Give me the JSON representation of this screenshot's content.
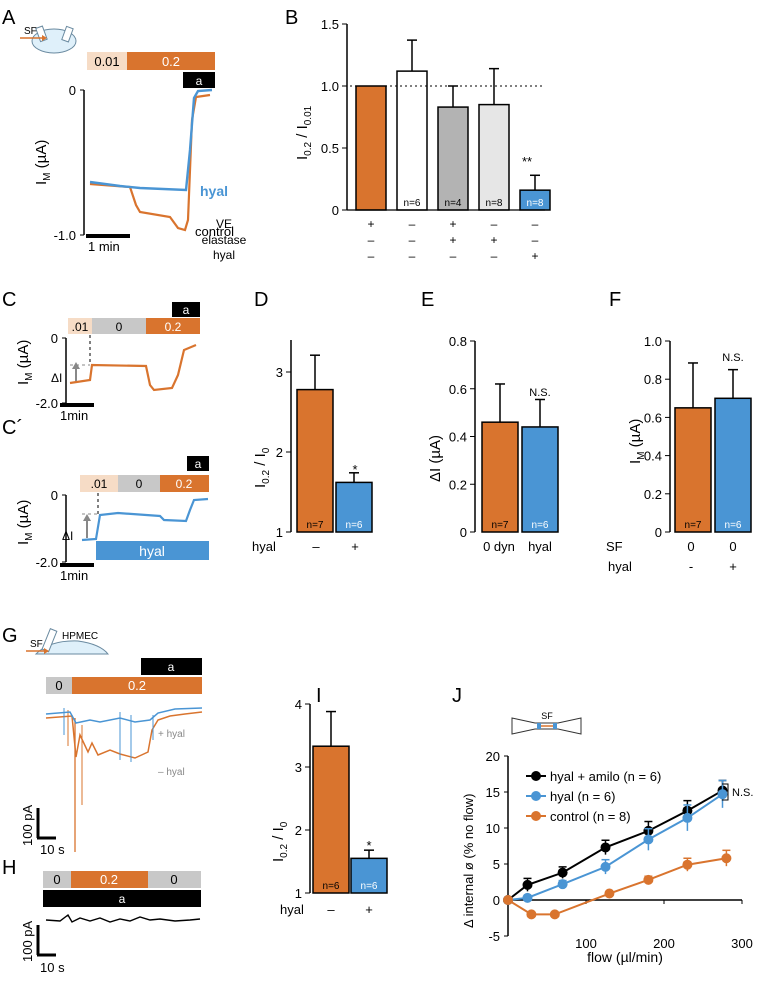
{
  "colors": {
    "orange": "#d9742e",
    "blue": "#4a95d4",
    "lightorange": "#f6dcc6",
    "gray": "#c8c8c8",
    "lightgray": "#e6e6e6",
    "darkgray": "#b3b3b3",
    "black": "#000000"
  },
  "panels": {
    "A": "A",
    "B": "B",
    "C": "C",
    "Cp": "C´",
    "D": "D",
    "E": "E",
    "F": "F",
    "G": "G",
    "H": "H",
    "I": "I",
    "J": "J"
  },
  "A": {
    "sf": "SF",
    "c1": "0.01",
    "c2": "0.2",
    "amil": "a",
    "y0": "0",
    "y1": "-1.0",
    "ylabel": "I",
    "ysub": "M",
    "yunit": " (µA)",
    "scale": "1 min",
    "hyal": "hyal",
    "control": "control"
  },
  "B": {
    "ylabel_a": "I",
    "sub_a": "0.2",
    "ylabel_b": " / I",
    "sub_b": "0.01",
    "ticks": [
      "0",
      "0.5",
      "1.0",
      "1.5"
    ],
    "rows": [
      {
        "label": "VE",
        "vals": [
          "+",
          "–",
          "+",
          "–",
          "–"
        ]
      },
      {
        "label": "elastase",
        "vals": [
          "–",
          "–",
          "+",
          "+",
          "–"
        ]
      },
      {
        "label": "hyal",
        "vals": [
          "–",
          "–",
          "–",
          "–",
          "+"
        ]
      }
    ],
    "sig": "**"
  },
  "C": {
    "c0": ".01",
    "c1": "0",
    "c2": "0.2",
    "amil": "a",
    "y0": "0",
    "y1": "-2.0",
    "ylabel": "I",
    "ysub": "M",
    "yunit": " (µA)",
    "scale": "1min",
    "dI": "ΔI"
  },
  "Cp": {
    "c0": ".01",
    "c1": "0",
    "c2": "0.2",
    "amil": "a",
    "y0": "0",
    "y1": "-2.0",
    "ylabel": "I",
    "ysub": "M",
    "yunit": " (µA)",
    "scale": "1min",
    "dI": "ΔI",
    "hyal": "hyal"
  },
  "D": {
    "ylabel_a": "I",
    "sub_a": "0.2",
    "ylabel_b": " / I",
    "sub_b": "0",
    "ticks": [
      "1",
      "2",
      "3"
    ],
    "xlabel": "hyal",
    "xvals": [
      "–",
      "+"
    ],
    "sig": "*"
  },
  "E": {
    "ylabel": "ΔI (µA)",
    "ticks": [
      "0",
      "0.2",
      "0.4",
      "0.6",
      "0.8"
    ],
    "xcats": [
      "0 dyn",
      "hyal"
    ],
    "sig": "N.S."
  },
  "F": {
    "ylabel": "I",
    "ysub": "M",
    "yunit": " (µA)",
    "ticks": [
      "0",
      "0.2",
      "0.4",
      "0.6",
      "0.8",
      "1.0"
    ],
    "rows": [
      {
        "label": "SF",
        "vals": [
          "0",
          "0"
        ]
      },
      {
        "label": "hyal",
        "vals": [
          "-",
          "+"
        ]
      }
    ],
    "sig": "N.S."
  },
  "G": {
    "sf": "SF",
    "cell": "HPMEC",
    "amil": "a",
    "c1": "0",
    "c2": "0.2",
    "plus": "+ hyal",
    "minus": "– hyal",
    "scale_y": "100 pA",
    "scale_x": "10 s"
  },
  "H": {
    "c1": "0",
    "c2": "0.2",
    "c3": "0",
    "amil": "a",
    "scale_y": "100 pA",
    "scale_x": "10 s"
  },
  "I": {
    "ylabel_a": "I",
    "sub_a": "0.2",
    "ylabel_b": " / I",
    "sub_b": "0",
    "ticks": [
      "1",
      "2",
      "3",
      "4"
    ],
    "xlabel": "hyal",
    "xvals": [
      "–",
      "+"
    ],
    "sig": "*"
  },
  "J": {
    "sf": "SF",
    "ylabel": "Δ internal ø (% no flow)",
    "xlabel": "flow (µl/min)",
    "yticks": [
      "-5",
      "0",
      "5",
      "10",
      "15",
      "20"
    ],
    "xticks": [
      "0",
      "100",
      "200",
      "300"
    ],
    "sig": "N.S."
  },
  "chart_data": [
    {
      "panel": "B",
      "type": "bar",
      "ylabel": "I0.2 / I0.01",
      "ylim": [
        0,
        1.5
      ],
      "reference_line": 1.0,
      "series": [
        {
          "values": [
            1.0,
            1.12,
            0.83,
            0.85,
            0.16
          ],
          "errors": [
            0,
            0.25,
            0.17,
            0.29,
            0.12
          ],
          "n": [
            "",
            "n=6",
            "n=4",
            "n=8",
            "n=8"
          ],
          "colors": [
            "#d9742e",
            "#ffffff",
            "#b3b3b3",
            "#e6e6e6",
            "#4a95d4"
          ]
        }
      ]
    },
    {
      "panel": "D",
      "type": "bar",
      "ylabel": "I0.2 / I0",
      "ylim": [
        1,
        3.4
      ],
      "categories": [
        "–",
        "+"
      ],
      "values": [
        2.78,
        1.62
      ],
      "errors": [
        0.43,
        0.12
      ],
      "n": [
        "n=7",
        "n=6"
      ],
      "colors": [
        "#d9742e",
        "#4a95d4"
      ]
    },
    {
      "panel": "E",
      "type": "bar",
      "ylabel": "ΔI (µA)",
      "ylim": [
        0,
        0.8
      ],
      "categories": [
        "0 dyn",
        "hyal"
      ],
      "values": [
        0.46,
        0.44
      ],
      "errors": [
        0.16,
        0.115
      ],
      "n": [
        "n=7",
        "n=6"
      ],
      "colors": [
        "#d9742e",
        "#4a95d4"
      ]
    },
    {
      "panel": "F",
      "type": "bar",
      "ylabel": "IM (µA)",
      "ylim": [
        0,
        1.0
      ],
      "categories": [
        "0 / -",
        "0 / +"
      ],
      "values": [
        0.65,
        0.7
      ],
      "errors": [
        0.235,
        0.15
      ],
      "n": [
        "n=7",
        "n=6"
      ],
      "colors": [
        "#d9742e",
        "#4a95d4"
      ]
    },
    {
      "panel": "I",
      "type": "bar",
      "ylabel": "I0.2 / I0",
      "ylim": [
        1,
        4
      ],
      "categories": [
        "–",
        "+"
      ],
      "values": [
        3.33,
        1.55
      ],
      "errors": [
        0.55,
        0.13
      ],
      "n": [
        "n=6",
        "n=6"
      ],
      "colors": [
        "#d9742e",
        "#4a95d4"
      ]
    },
    {
      "panel": "J",
      "type": "line",
      "xlabel": "flow (µl/min)",
      "ylabel": "Δ internal ø (% no flow)",
      "xlim": [
        0,
        300
      ],
      "ylim": [
        -5,
        20
      ],
      "series": [
        {
          "name": "hyal  + amilo (n = 6)",
          "color": "#000000",
          "x": [
            0,
            25,
            70,
            125,
            180,
            230,
            275
          ],
          "y": [
            0,
            2.1,
            3.8,
            7.3,
            9.6,
            12.4,
            15.2
          ],
          "err": [
            0,
            0.9,
            0.8,
            1.0,
            1.3,
            1.4,
            1.4
          ]
        },
        {
          "name": "hyal (n = 6)",
          "color": "#4a95d4",
          "x": [
            0,
            25,
            70,
            125,
            180,
            230,
            275
          ],
          "y": [
            0,
            0.3,
            2.2,
            4.6,
            8.4,
            11.4,
            14.7
          ],
          "err": [
            0,
            0.3,
            0.5,
            1.0,
            1.5,
            1.8,
            1.9
          ]
        },
        {
          "name": "control (n = 8)",
          "color": "#d9742e",
          "x": [
            0,
            30,
            60,
            130,
            180,
            230,
            280
          ],
          "y": [
            0,
            -2.0,
            -2.0,
            0.9,
            2.8,
            4.9,
            5.8
          ],
          "err": [
            0,
            0.3,
            0.3,
            0.3,
            0.5,
            0.9,
            1.1
          ]
        }
      ]
    }
  ]
}
